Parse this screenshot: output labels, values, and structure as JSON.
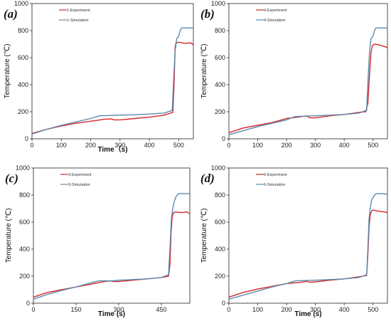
{
  "chart_data": [
    {
      "type": "line",
      "panel_label": "(a)",
      "xlabel": "Time（s)",
      "ylabel": "Temperature (℃)",
      "xlim": [
        0,
        550
      ],
      "ylim": [
        0,
        1000
      ],
      "xticks": [
        0,
        100,
        200,
        300,
        400,
        500
      ],
      "yticks": [
        0,
        200,
        400,
        600,
        800,
        1000
      ],
      "legend_position": "top-left",
      "series": [
        {
          "name": "1-Experiment",
          "color": "#d62728",
          "x": [
            0,
            50,
            100,
            150,
            200,
            250,
            270,
            280,
            300,
            350,
            400,
            450,
            480,
            484,
            488,
            491,
            495,
            500,
            520,
            540,
            550
          ],
          "y": [
            40,
            70,
            95,
            115,
            130,
            145,
            147,
            140,
            140,
            150,
            160,
            175,
            195,
            400,
            680,
            710,
            710,
            715,
            705,
            710,
            695
          ]
        },
        {
          "name": "1-Simulation",
          "color": "#5b8ab0",
          "x": [
            0,
            50,
            100,
            150,
            200,
            230,
            300,
            350,
            400,
            450,
            478,
            483,
            488,
            493,
            500,
            505,
            510,
            530,
            550
          ],
          "y": [
            35,
            70,
            100,
            125,
            150,
            170,
            175,
            178,
            183,
            190,
            210,
            450,
            650,
            740,
            760,
            800,
            820,
            820,
            820
          ]
        }
      ]
    },
    {
      "type": "line",
      "panel_label": "(b)",
      "xlabel": "",
      "ylabel": "Temperature (℃)",
      "xlim": [
        0,
        550
      ],
      "ylim": [
        0,
        1000
      ],
      "xticks": [
        0,
        100,
        200,
        300,
        400,
        500
      ],
      "yticks": [
        0,
        200,
        400,
        600,
        800,
        1000
      ],
      "legend_position": "top-left",
      "series": [
        {
          "name": "4-Experiment",
          "color": "#d62728",
          "x": [
            0,
            50,
            100,
            150,
            200,
            240,
            270,
            280,
            300,
            350,
            400,
            450,
            475,
            482,
            487,
            493,
            498,
            505,
            520,
            535,
            550
          ],
          "y": [
            45,
            80,
            100,
            120,
            150,
            160,
            170,
            155,
            155,
            170,
            180,
            195,
            200,
            260,
            450,
            640,
            690,
            700,
            695,
            685,
            675
          ]
        },
        {
          "name": "4-Simulation",
          "color": "#5b8ab0",
          "x": [
            0,
            50,
            100,
            150,
            200,
            230,
            300,
            350,
            400,
            450,
            478,
            483,
            488,
            493,
            500,
            505,
            510,
            530,
            550
          ],
          "y": [
            30,
            60,
            90,
            115,
            140,
            165,
            170,
            175,
            180,
            190,
            210,
            450,
            650,
            740,
            760,
            800,
            820,
            820,
            820
          ]
        }
      ]
    },
    {
      "type": "line",
      "panel_label": "(c)",
      "xlabel": "Time (s)",
      "ylabel": "Temperature (℃)",
      "xlim": [
        0,
        550
      ],
      "ylim": [
        0,
        1000
      ],
      "xticks": [
        0,
        150,
        300,
        450
      ],
      "yticks": [
        0,
        200,
        400,
        600,
        800,
        1000
      ],
      "legend_position": "top-left",
      "series": [
        {
          "name": "3-Experiment",
          "color": "#d62728",
          "x": [
            0,
            50,
            100,
            150,
            200,
            250,
            270,
            280,
            300,
            350,
            400,
            450,
            475,
            480,
            484,
            488,
            493,
            500,
            520,
            540,
            550
          ],
          "y": [
            45,
            80,
            100,
            120,
            140,
            160,
            165,
            160,
            160,
            170,
            180,
            190,
            200,
            280,
            520,
            640,
            670,
            675,
            670,
            675,
            660
          ]
        },
        {
          "name": "3-Simulation",
          "color": "#5b8ab0",
          "x": [
            0,
            50,
            100,
            150,
            200,
            230,
            280,
            300,
            350,
            400,
            450,
            475,
            480,
            485,
            490,
            495,
            502,
            510,
            530,
            550
          ],
          "y": [
            30,
            65,
            95,
            120,
            150,
            165,
            165,
            170,
            175,
            180,
            190,
            210,
            400,
            620,
            700,
            750,
            790,
            810,
            810,
            810
          ]
        }
      ]
    },
    {
      "type": "line",
      "panel_label": "(d)",
      "xlabel": "Time (s)",
      "ylabel": "Temperature (℃)",
      "xlim": [
        0,
        550
      ],
      "ylim": [
        0,
        1000
      ],
      "xticks": [
        0,
        100,
        200,
        300,
        400,
        500
      ],
      "yticks": [
        0,
        200,
        400,
        600,
        800,
        1000
      ],
      "legend_position": "top-left",
      "series": [
        {
          "name": "6-Experiment",
          "color": "#d62728",
          "x": [
            0,
            50,
            100,
            150,
            200,
            250,
            270,
            280,
            300,
            350,
            400,
            450,
            478,
            482,
            486,
            490,
            495,
            500,
            520,
            540,
            550
          ],
          "y": [
            45,
            80,
            105,
            125,
            145,
            155,
            162,
            155,
            158,
            170,
            180,
            195,
            205,
            350,
            560,
            650,
            680,
            690,
            680,
            675,
            670
          ]
        },
        {
          "name": "6-Simulation",
          "color": "#5b8ab0",
          "x": [
            0,
            50,
            100,
            150,
            200,
            230,
            300,
            350,
            400,
            450,
            478,
            482,
            486,
            490,
            495,
            502,
            510,
            530,
            550
          ],
          "y": [
            30,
            60,
            90,
            120,
            145,
            165,
            170,
            175,
            180,
            190,
            210,
            400,
            620,
            700,
            760,
            790,
            810,
            810,
            805
          ]
        }
      ]
    }
  ]
}
